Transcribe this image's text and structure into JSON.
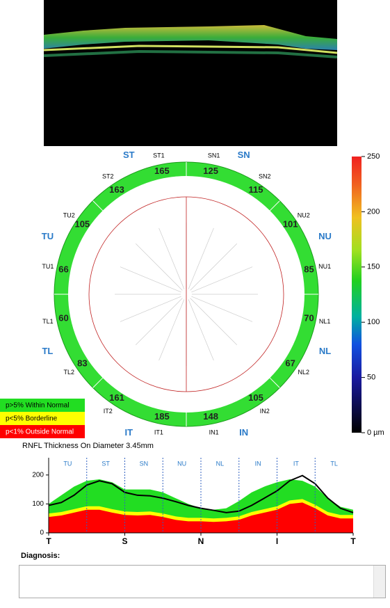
{
  "map": {
    "quadrants": [
      "SN",
      "NU",
      "NL",
      "IN",
      "IT",
      "TL",
      "TU",
      "ST"
    ],
    "sectors": [
      {
        "label": "SN1",
        "value": 125
      },
      {
        "label": "SN2",
        "value": 115
      },
      {
        "label": "NU2",
        "value": 101
      },
      {
        "label": "NU1",
        "value": 85
      },
      {
        "label": "NL1",
        "value": 70
      },
      {
        "label": "NL2",
        "value": 67
      },
      {
        "label": "IN2",
        "value": 105
      },
      {
        "label": "IN1",
        "value": 148
      },
      {
        "label": "IT1",
        "value": 185
      },
      {
        "label": "IT2",
        "value": 161
      },
      {
        "label": "TL2",
        "value": 83
      },
      {
        "label": "TL1",
        "value": 60
      },
      {
        "label": "TU1",
        "value": 66
      },
      {
        "label": "TU2",
        "value": 105
      },
      {
        "label": "ST2",
        "value": 163
      },
      {
        "label": "ST1",
        "value": 165
      }
    ]
  },
  "colorbar": {
    "lim": [
      0,
      250
    ],
    "ticks": [
      250,
      200,
      150,
      100,
      50,
      {
        "value": 0,
        "label": "0 µm"
      }
    ]
  },
  "chart_data": {
    "type": "line",
    "title": "RNFL Thickness On Diameter 3.45mm",
    "sectors": [
      "TU",
      "ST",
      "SN",
      "NU",
      "NL",
      "IN",
      "IT",
      "TL"
    ],
    "x": [
      0,
      15,
      30,
      45,
      60,
      75,
      90,
      105,
      120,
      135,
      150,
      165,
      180,
      195,
      210,
      225,
      240,
      255,
      270,
      285,
      300,
      315,
      330,
      345,
      360
    ],
    "xlim": [
      0,
      360
    ],
    "xticks": [
      {
        "value": 0,
        "label": "T"
      },
      {
        "value": 90,
        "label": "S"
      },
      {
        "value": 180,
        "label": "N"
      },
      {
        "value": 270,
        "label": "I"
      },
      {
        "value": 360,
        "label": "T"
      }
    ],
    "ylim": [
      0,
      250
    ],
    "yticks": [
      0,
      100,
      200
    ],
    "series": [
      {
        "name": "p>5% Within Normal",
        "color": "#22dd22",
        "values": [
          100,
          130,
          160,
          180,
          185,
          175,
          150,
          150,
          150,
          140,
          120,
          100,
          85,
          80,
          85,
          110,
          140,
          160,
          175,
          185,
          180,
          160,
          120,
          90,
          80
        ]
      },
      {
        "name": "p<5% Borderline",
        "color": "#ffff00",
        "values": [
          67,
          72,
          82,
          92,
          92,
          82,
          74,
          72,
          74,
          67,
          57,
          52,
          52,
          50,
          52,
          57,
          72,
          82,
          92,
          112,
          117,
          97,
          72,
          62,
          62
        ]
      },
      {
        "name": "p<1% Outside Normal",
        "color": "#ff0000",
        "values": [
          55,
          60,
          70,
          80,
          80,
          70,
          62,
          60,
          62,
          55,
          45,
          40,
          40,
          38,
          40,
          45,
          60,
          70,
          80,
          100,
          105,
          85,
          60,
          50,
          50
        ]
      },
      {
        "color": "#000000",
        "values": [
          95,
          105,
          130,
          165,
          180,
          170,
          140,
          130,
          128,
          120,
          108,
          95,
          85,
          78,
          70,
          75,
          95,
          120,
          145,
          180,
          198,
          170,
          120,
          85,
          70
        ]
      }
    ]
  },
  "diagnosis": {
    "label": "Diagnosis:"
  }
}
